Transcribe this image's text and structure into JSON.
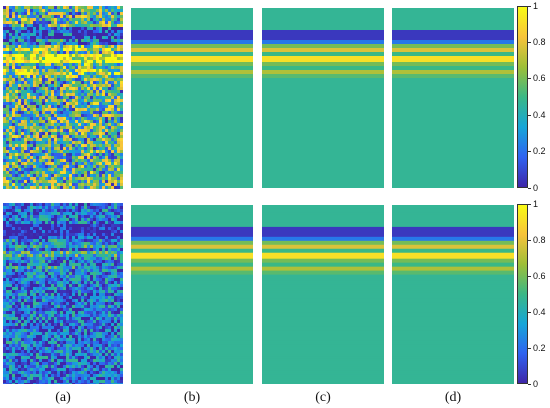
{
  "figure": {
    "captions": [
      "(a)",
      "(b)",
      "(c)",
      "(d)"
    ],
    "colormap": [
      "#3e26a8",
      "#2f63f1",
      "#16a6d8",
      "#3ab886",
      "#9dbf38",
      "#f7c33b",
      "#f9fb15"
    ],
    "colorbar_range": [
      0,
      1
    ],
    "colorbar_ticks": [
      "0",
      "0.2",
      "0.4",
      "0.6",
      "0.8",
      "1"
    ],
    "colorbar_tick_values": [
      0,
      0.2,
      0.4,
      0.6,
      0.8,
      1
    ],
    "background_level": 0.47
  }
}
